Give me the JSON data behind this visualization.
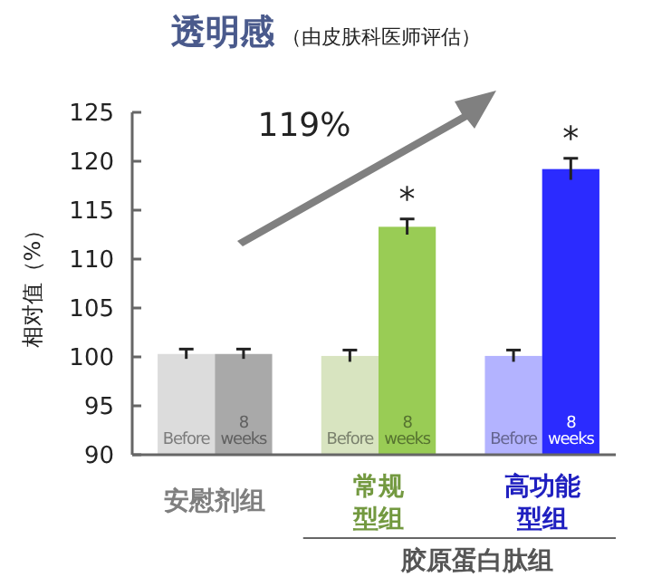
{
  "chart_data": {
    "type": "bar",
    "title": "透明感",
    "subtitle": "（由皮肤科医师评估）",
    "ylabel": "相对值（%）",
    "categories": [
      "安慰剂组",
      "常规型组",
      "高功能型组"
    ],
    "series": [
      {
        "name": "Before",
        "colors": [
          "#dcdcdc",
          "#d8e4c0",
          "#b3b3ff"
        ],
        "values": [
          100.3,
          100.1,
          100.1
        ],
        "errors": [
          0.5,
          0.6,
          0.6
        ]
      },
      {
        "name": "8 weeks",
        "colors": [
          "#a9a9a9",
          "#99cc55",
          "#2b2bff"
        ],
        "values": [
          100.3,
          113.3,
          119.2
        ],
        "errors": [
          0.5,
          0.8,
          1.1
        ]
      }
    ],
    "ylim": [
      90,
      125
    ],
    "yticks": [
      90,
      95,
      100,
      105,
      110,
      115,
      120,
      125
    ],
    "grid": false,
    "annotations": [
      "119%",
      "胶原蛋白肽组",
      "*",
      "*"
    ]
  }
}
